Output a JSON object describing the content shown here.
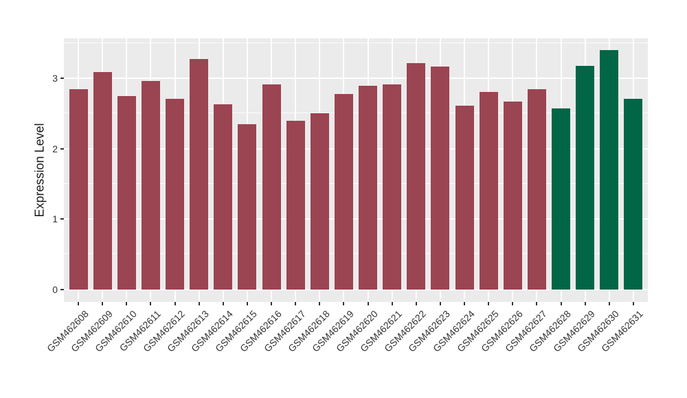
{
  "chart_data": {
    "type": "bar",
    "title": "",
    "xlabel": "",
    "ylabel": "Expression Level",
    "ylim": [
      0,
      3.55
    ],
    "yticks": [
      0,
      1,
      2,
      3
    ],
    "grid": "white major and minor horizontal lines plus vertical lines at each category center on grey panel",
    "legend_position": "none",
    "categories": [
      "GSM462608",
      "GSM462609",
      "GSM462610",
      "GSM462611",
      "GSM462612",
      "GSM462613",
      "GSM462614",
      "GSM462615",
      "GSM462616",
      "GSM462617",
      "GSM462618",
      "GSM462619",
      "GSM462620",
      "GSM462621",
      "GSM462622",
      "GSM462623",
      "GSM462624",
      "GSM462625",
      "GSM462626",
      "GSM462627",
      "GSM462628",
      "GSM462629",
      "GSM462630",
      "GSM462631"
    ],
    "series": [
      {
        "name": "Expression Level",
        "values": [
          2.85,
          3.09,
          2.75,
          2.97,
          2.71,
          3.28,
          2.63,
          2.35,
          2.92,
          2.4,
          2.51,
          2.78,
          2.9,
          2.92,
          3.22,
          3.17,
          2.61,
          2.81,
          2.67,
          2.85,
          2.58,
          3.18,
          3.4,
          2.71
        ]
      }
    ],
    "bar_group_keys": [
      "group1",
      "group1",
      "group1",
      "group1",
      "group1",
      "group1",
      "group1",
      "group1",
      "group1",
      "group1",
      "group1",
      "group1",
      "group1",
      "group1",
      "group1",
      "group1",
      "group1",
      "group1",
      "group1",
      "group1",
      "group2",
      "group2",
      "group2",
      "group2"
    ],
    "group_colors": {
      "group1": "#9B4452",
      "group2": "#006646"
    }
  },
  "style": {
    "figure_bg": "#FFFFFF",
    "panel_bg": "#EBEBEB",
    "grid_color": "#FFFFFF",
    "axis_text_color": "#333333",
    "axis_title_color": "#1A1A1A"
  }
}
